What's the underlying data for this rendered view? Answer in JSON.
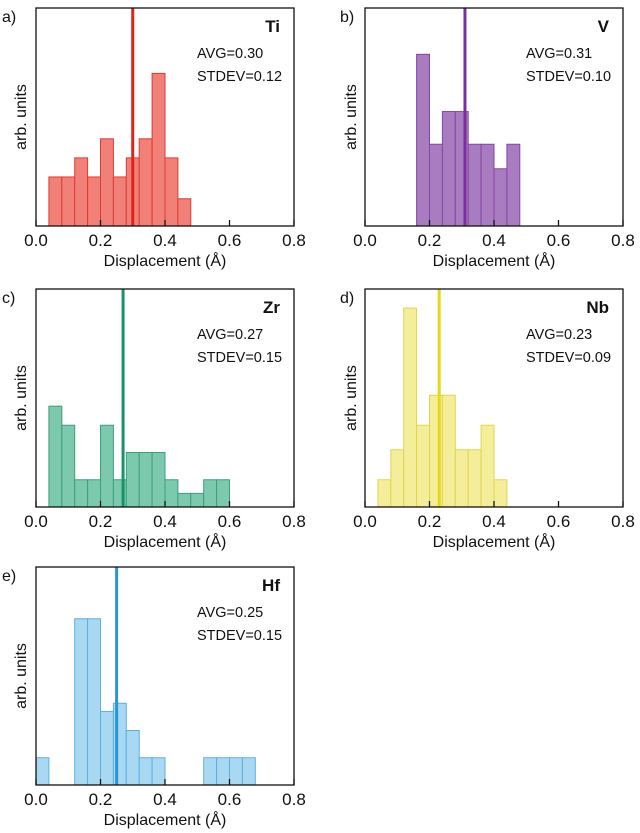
{
  "chart_data": [
    {
      "type": "bar",
      "panel_label": "a)",
      "element": "Ti",
      "avg_text": "AVG=0.30",
      "stdev_text": "STDEV=0.12",
      "mean_line": 0.3,
      "color": "#f08078",
      "edge": "#dd3c34",
      "line_color": "#d9261c",
      "xlabel": "Displacement (Å)",
      "ylabel": "arb. units",
      "xlim": [
        0,
        0.8
      ],
      "ylim": [
        0,
        8
      ],
      "xticks": [
        "0.0",
        "0.2",
        "0.4",
        "0.6",
        "0.8"
      ],
      "bin_width": 0.04,
      "bins": [
        {
          "x": 0.06,
          "value": 1.8
        },
        {
          "x": 0.1,
          "value": 1.8
        },
        {
          "x": 0.14,
          "value": 2.5
        },
        {
          "x": 0.18,
          "value": 1.8
        },
        {
          "x": 0.22,
          "value": 3.2
        },
        {
          "x": 0.26,
          "value": 1.8
        },
        {
          "x": 0.3,
          "value": 2.5
        },
        {
          "x": 0.34,
          "value": 3.2
        },
        {
          "x": 0.38,
          "value": 5.6
        },
        {
          "x": 0.42,
          "value": 2.5
        },
        {
          "x": 0.46,
          "value": 1.0
        }
      ]
    },
    {
      "type": "bar",
      "panel_label": "b)",
      "element": "V",
      "avg_text": "AVG=0.31",
      "stdev_text": "STDEV=0.10",
      "mean_line": 0.31,
      "color": "#a97cc0",
      "edge": "#8246a6",
      "line_color": "#7b2f9e",
      "xlabel": "Displacement (Å)",
      "ylabel": "arb. units",
      "xlim": [
        0,
        0.8
      ],
      "ylim": [
        0,
        8
      ],
      "xticks": [
        "0.0",
        "0.2",
        "0.4",
        "0.6",
        "0.8"
      ],
      "bin_width": 0.04,
      "bins": [
        {
          "x": 0.18,
          "value": 6.3
        },
        {
          "x": 0.22,
          "value": 3.0
        },
        {
          "x": 0.26,
          "value": 4.2
        },
        {
          "x": 0.3,
          "value": 4.2
        },
        {
          "x": 0.34,
          "value": 3.0
        },
        {
          "x": 0.38,
          "value": 3.0
        },
        {
          "x": 0.42,
          "value": 2.1
        },
        {
          "x": 0.46,
          "value": 3.0
        }
      ]
    },
    {
      "type": "bar",
      "panel_label": "c)",
      "element": "Zr",
      "avg_text": "AVG=0.27",
      "stdev_text": "STDEV=0.15",
      "mean_line": 0.27,
      "color": "#7cc9ae",
      "edge": "#3e9f7b",
      "line_color": "#17936b",
      "xlabel": "Displacement (Å)",
      "ylabel": "arb. units",
      "xlim": [
        0,
        0.8
      ],
      "ylim": [
        0,
        8
      ],
      "xticks": [
        "0.0",
        "0.2",
        "0.4",
        "0.6",
        "0.8"
      ],
      "bin_width": 0.04,
      "bins": [
        {
          "x": 0.06,
          "value": 3.7
        },
        {
          "x": 0.1,
          "value": 3.0
        },
        {
          "x": 0.14,
          "value": 1.0
        },
        {
          "x": 0.18,
          "value": 1.0
        },
        {
          "x": 0.22,
          "value": 3.0
        },
        {
          "x": 0.26,
          "value": 1.0
        },
        {
          "x": 0.3,
          "value": 2.0
        },
        {
          "x": 0.34,
          "value": 2.0
        },
        {
          "x": 0.38,
          "value": 2.0
        },
        {
          "x": 0.42,
          "value": 1.0
        },
        {
          "x": 0.46,
          "value": 0.5
        },
        {
          "x": 0.5,
          "value": 0.5
        },
        {
          "x": 0.54,
          "value": 1.0
        },
        {
          "x": 0.58,
          "value": 1.0
        }
      ]
    },
    {
      "type": "bar",
      "panel_label": "d)",
      "element": "Nb",
      "avg_text": "AVG=0.23",
      "stdev_text": "STDEV=0.09",
      "mean_line": 0.23,
      "color": "#f4ee9a",
      "edge": "#e1d550",
      "line_color": "#e6d817",
      "xlabel": "Displacement (Å)",
      "ylabel": "arb. units",
      "xlim": [
        0,
        0.8
      ],
      "ylim": [
        0,
        8
      ],
      "xticks": [
        "0.0",
        "0.2",
        "0.4",
        "0.6",
        "0.8"
      ],
      "bin_width": 0.04,
      "bins": [
        {
          "x": 0.06,
          "value": 1.0
        },
        {
          "x": 0.1,
          "value": 2.1
        },
        {
          "x": 0.14,
          "value": 7.3
        },
        {
          "x": 0.18,
          "value": 3.0
        },
        {
          "x": 0.22,
          "value": 4.1
        },
        {
          "x": 0.26,
          "value": 4.1
        },
        {
          "x": 0.3,
          "value": 2.1
        },
        {
          "x": 0.34,
          "value": 2.1
        },
        {
          "x": 0.38,
          "value": 3.0
        },
        {
          "x": 0.42,
          "value": 1.0
        }
      ]
    },
    {
      "type": "bar",
      "panel_label": "e)",
      "element": "Hf",
      "avg_text": "AVG=0.25",
      "stdev_text": "STDEV=0.15",
      "mean_line": 0.25,
      "color": "#a9d8f2",
      "edge": "#5bb0e0",
      "line_color": "#2a95d5",
      "xlabel": "Displacement (Å)",
      "ylabel": "arb. units",
      "xlim": [
        0,
        0.8
      ],
      "ylim": [
        0,
        8
      ],
      "xticks": [
        "0.0",
        "0.2",
        "0.4",
        "0.6",
        "0.8"
      ],
      "bin_width": 0.04,
      "bins": [
        {
          "x": 0.02,
          "value": 1.0
        },
        {
          "x": 0.14,
          "value": 6.1
        },
        {
          "x": 0.18,
          "value": 6.1
        },
        {
          "x": 0.22,
          "value": 2.7
        },
        {
          "x": 0.26,
          "value": 3.0
        },
        {
          "x": 0.3,
          "value": 2.0
        },
        {
          "x": 0.34,
          "value": 1.0
        },
        {
          "x": 0.38,
          "value": 1.0
        },
        {
          "x": 0.54,
          "value": 1.0
        },
        {
          "x": 0.58,
          "value": 1.0
        },
        {
          "x": 0.62,
          "value": 1.0
        },
        {
          "x": 0.66,
          "value": 1.0
        }
      ]
    }
  ]
}
